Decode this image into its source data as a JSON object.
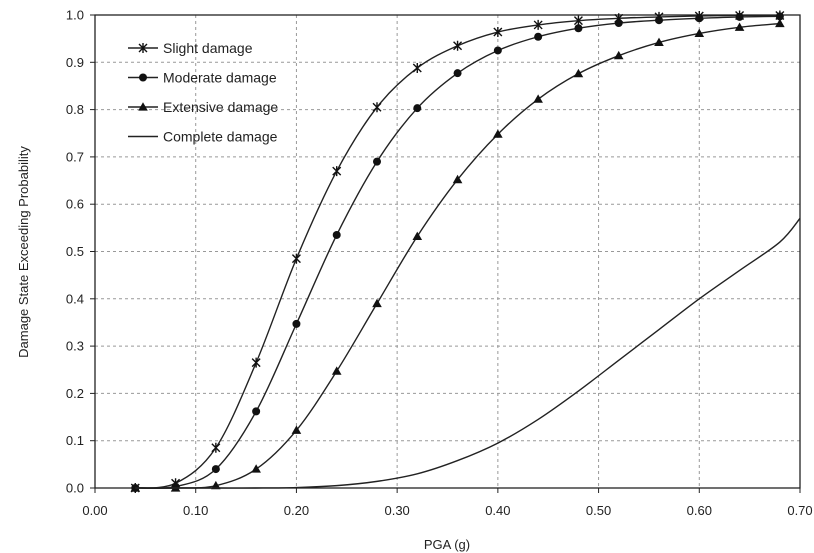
{
  "chart_data": {
    "type": "line",
    "title": "",
    "xlabel": "PGA (g)",
    "ylabel": "Damage State Exceeding Probability",
    "xlim": [
      0,
      0.7
    ],
    "ylim": [
      0,
      1
    ],
    "grid": true,
    "legend_position": "top-left",
    "x_ticks": [
      "0.00",
      "0.10",
      "0.20",
      "0.30",
      "0.40",
      "0.50",
      "0.60",
      "0.70"
    ],
    "y_ticks": [
      "0.0",
      "0.1",
      "0.2",
      "0.3",
      "0.4",
      "0.5",
      "0.6",
      "0.7",
      "0.8",
      "0.9",
      "1.0"
    ],
    "series": [
      {
        "name": "Slight damage",
        "marker": "star",
        "x": [
          0.04,
          0.08,
          0.12,
          0.16,
          0.2,
          0.24,
          0.28,
          0.32,
          0.36,
          0.4,
          0.44,
          0.48,
          0.52,
          0.56,
          0.6,
          0.64,
          0.68
        ],
        "y": [
          0.0,
          0.01,
          0.085,
          0.265,
          0.485,
          0.67,
          0.805,
          0.888,
          0.935,
          0.964,
          0.979,
          0.988,
          0.993,
          0.996,
          0.998,
          0.999,
          0.999
        ]
      },
      {
        "name": "Moderate damage",
        "marker": "circle",
        "x": [
          0.04,
          0.08,
          0.12,
          0.16,
          0.2,
          0.24,
          0.28,
          0.32,
          0.36,
          0.4,
          0.44,
          0.48,
          0.52,
          0.56,
          0.6,
          0.64,
          0.68
        ],
        "y": [
          0.0,
          0.003,
          0.04,
          0.162,
          0.347,
          0.535,
          0.69,
          0.803,
          0.877,
          0.925,
          0.954,
          0.972,
          0.983,
          0.989,
          0.993,
          0.996,
          0.997
        ]
      },
      {
        "name": "Extensive damage",
        "marker": "triangle",
        "x": [
          0.04,
          0.08,
          0.12,
          0.16,
          0.2,
          0.24,
          0.28,
          0.32,
          0.36,
          0.4,
          0.44,
          0.48,
          0.52,
          0.56,
          0.6,
          0.64,
          0.68
        ],
        "y": [
          0.0,
          0.0,
          0.005,
          0.04,
          0.122,
          0.247,
          0.39,
          0.532,
          0.652,
          0.748,
          0.822,
          0.876,
          0.914,
          0.942,
          0.961,
          0.974,
          0.982
        ]
      },
      {
        "name": "Complete damage",
        "marker": "none",
        "x": [
          0.04,
          0.08,
          0.12,
          0.16,
          0.2,
          0.24,
          0.28,
          0.32,
          0.36,
          0.4,
          0.44,
          0.48,
          0.52,
          0.56,
          0.6,
          0.64,
          0.68,
          0.7
        ],
        "y": [
          0.0,
          0.0,
          0.0,
          0.0,
          0.001,
          0.005,
          0.014,
          0.03,
          0.058,
          0.095,
          0.145,
          0.205,
          0.27,
          0.335,
          0.4,
          0.46,
          0.52,
          0.57
        ]
      }
    ]
  }
}
